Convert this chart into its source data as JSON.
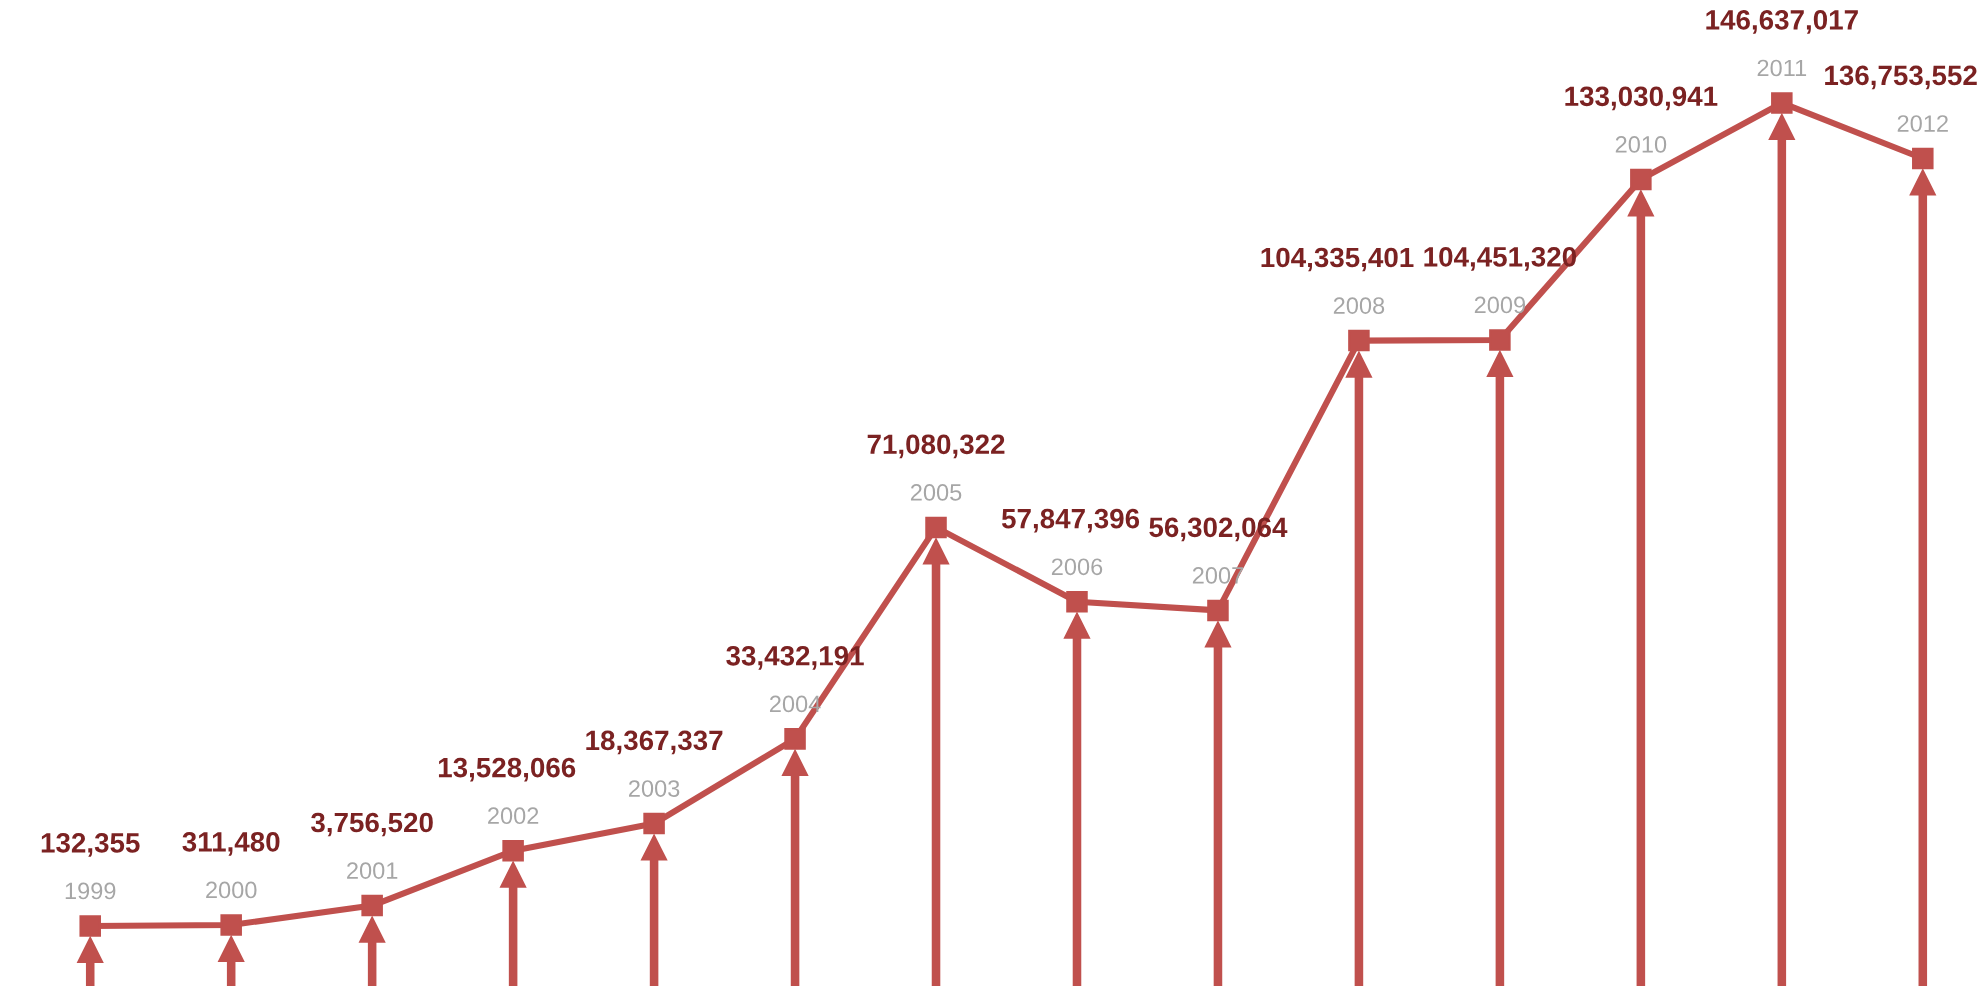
{
  "chart_data": {
    "type": "line",
    "categories": [
      "1999",
      "2000",
      "2001",
      "2002",
      "2003",
      "2004",
      "2005",
      "2006",
      "2007",
      "2008",
      "2009",
      "2010",
      "2011",
      "2012"
    ],
    "series": [
      {
        "color": "#c0504d",
        "values": [
          132355,
          311480,
          3756520,
          13528066,
          18367337,
          33432191,
          71080322,
          57847396,
          56302064,
          104335401,
          104451320,
          133030941,
          146637017,
          136753552
        ],
        "value_labels": [
          "132,355",
          "311,480",
          "3,756,520",
          "13,528,066",
          "18,367,337",
          "33,432,191",
          "71,080,322",
          "57,847,396",
          "56,302,064",
          "104,335,401",
          "104,451,320",
          "133,030,941",
          "146,637,017",
          "136,753,552"
        ]
      }
    ],
    "marker": "square",
    "line_style": "solid"
  }
}
